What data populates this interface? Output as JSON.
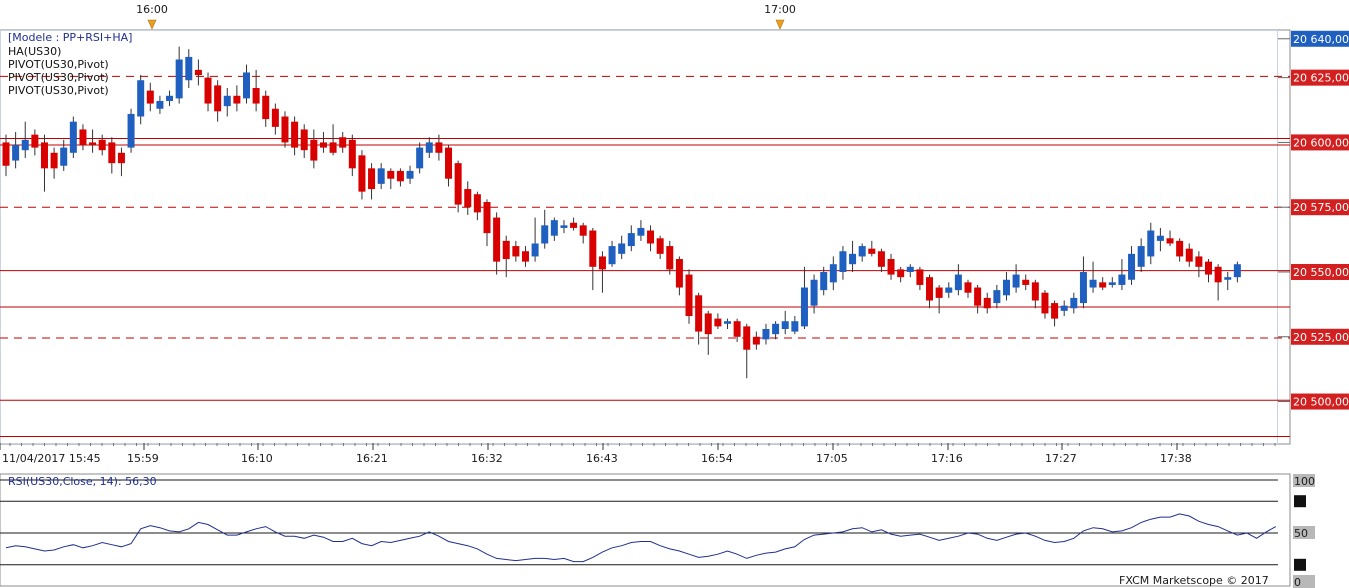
{
  "chart_data": [
    {
      "type": "candlestick",
      "legend": {
        "model": "[Modele : PP+RSI+HA]",
        "entries": [
          "HA(US30)",
          "PIVOT(US30,Pivot)",
          "PIVOT(US30,Pivot)",
          "PIVOT(US30,Pivot)"
        ]
      },
      "top_time_labels": [
        "16:00",
        "17:00"
      ],
      "x_tick_labels": [
        "11/04/2017 15:45",
        "15:59",
        "16:10",
        "16:21",
        "16:32",
        "16:43",
        "16:54",
        "17:05",
        "17:16",
        "17:27",
        "17:38"
      ],
      "y_tick_labels": [
        "20 640,00",
        "20 625,00",
        "20 600,00",
        "20 575,00",
        "20 550,00",
        "20 525,00",
        "20 500,00"
      ],
      "ylim": [
        20484,
        20643
      ],
      "colors": {
        "up": "#1f5fbf",
        "down": "#d90000",
        "wick": "#333333",
        "pivot": "#c00000",
        "label_bg": "#d22020"
      },
      "pivot_levels": [
        {
          "value": 20625.5,
          "style": "dashed"
        },
        {
          "value": 20601.5,
          "style": "solid"
        },
        {
          "value": 20599.0,
          "style": "solid"
        },
        {
          "value": 20575.0,
          "style": "dashed"
        },
        {
          "value": 20550.5,
          "style": "solid"
        },
        {
          "value": 20536.5,
          "style": "solid"
        },
        {
          "value": 20524.5,
          "style": "dashed"
        },
        {
          "value": 20500.5,
          "style": "solid"
        },
        {
          "value": 20486.5,
          "style": "solid"
        }
      ],
      "candles": [
        {
          "o": 20600,
          "c": 20591,
          "h": 20603,
          "l": 20587
        },
        {
          "o": 20593,
          "c": 20599,
          "h": 20604,
          "l": 20590
        },
        {
          "o": 20597,
          "c": 20601,
          "h": 20608,
          "l": 20594
        },
        {
          "o": 20603,
          "c": 20598,
          "h": 20605,
          "l": 20595
        },
        {
          "o": 20600,
          "c": 20590,
          "h": 20603,
          "l": 20581
        },
        {
          "o": 20596,
          "c": 20590,
          "h": 20598,
          "l": 20586
        },
        {
          "o": 20591,
          "c": 20598,
          "h": 20601,
          "l": 20589
        },
        {
          "o": 20596,
          "c": 20608,
          "h": 20610,
          "l": 20594
        },
        {
          "o": 20605,
          "c": 20599,
          "h": 20607,
          "l": 20597
        },
        {
          "o": 20600,
          "c": 20599,
          "h": 20605,
          "l": 20596
        },
        {
          "o": 20601,
          "c": 20597,
          "h": 20603,
          "l": 20595
        },
        {
          "o": 20600,
          "c": 20592,
          "h": 20602,
          "l": 20588
        },
        {
          "o": 20596,
          "c": 20592,
          "h": 20598,
          "l": 20587
        },
        {
          "o": 20598,
          "c": 20611,
          "h": 20613,
          "l": 20596
        },
        {
          "o": 20610,
          "c": 20624,
          "h": 20626,
          "l": 20607
        },
        {
          "o": 20620,
          "c": 20615,
          "h": 20623,
          "l": 20612
        },
        {
          "o": 20613,
          "c": 20616,
          "h": 20618,
          "l": 20611
        },
        {
          "o": 20616,
          "c": 20618,
          "h": 20620,
          "l": 20614
        },
        {
          "o": 20617,
          "c": 20632,
          "h": 20637,
          "l": 20615
        },
        {
          "o": 20624,
          "c": 20633,
          "h": 20636,
          "l": 20621
        },
        {
          "o": 20628,
          "c": 20626,
          "h": 20632,
          "l": 20622
        },
        {
          "o": 20625,
          "c": 20615,
          "h": 20627,
          "l": 20612
        },
        {
          "o": 20622,
          "c": 20612,
          "h": 20624,
          "l": 20608
        },
        {
          "o": 20614,
          "c": 20618,
          "h": 20621,
          "l": 20610
        },
        {
          "o": 20618,
          "c": 20615,
          "h": 20622,
          "l": 20612
        },
        {
          "o": 20617,
          "c": 20627,
          "h": 20630,
          "l": 20615
        },
        {
          "o": 20621,
          "c": 20615,
          "h": 20628,
          "l": 20612
        },
        {
          "o": 20618,
          "c": 20609,
          "h": 20620,
          "l": 20606
        },
        {
          "o": 20613,
          "c": 20606,
          "h": 20615,
          "l": 20603
        },
        {
          "o": 20610,
          "c": 20600,
          "h": 20612,
          "l": 20598
        },
        {
          "o": 20608,
          "c": 20598,
          "h": 20610,
          "l": 20595
        },
        {
          "o": 20605,
          "c": 20597,
          "h": 20607,
          "l": 20594
        },
        {
          "o": 20601,
          "c": 20593,
          "h": 20605,
          "l": 20590
        },
        {
          "o": 20600,
          "c": 20598,
          "h": 20604,
          "l": 20596
        },
        {
          "o": 20600,
          "c": 20596,
          "h": 20607,
          "l": 20595
        },
        {
          "o": 20602,
          "c": 20598,
          "h": 20604,
          "l": 20596
        },
        {
          "o": 20601,
          "c": 20590,
          "h": 20603,
          "l": 20587
        },
        {
          "o": 20595,
          "c": 20581,
          "h": 20597,
          "l": 20578
        },
        {
          "o": 20590,
          "c": 20582,
          "h": 20592,
          "l": 20578
        },
        {
          "o": 20584,
          "c": 20590,
          "h": 20592,
          "l": 20582
        },
        {
          "o": 20589,
          "c": 20586,
          "h": 20590,
          "l": 20582
        },
        {
          "o": 20589,
          "c": 20585,
          "h": 20590,
          "l": 20583
        },
        {
          "o": 20586,
          "c": 20589,
          "h": 20591,
          "l": 20584
        },
        {
          "o": 20590,
          "c": 20598,
          "h": 20600,
          "l": 20588
        },
        {
          "o": 20596,
          "c": 20600,
          "h": 20602,
          "l": 20594
        },
        {
          "o": 20600,
          "c": 20596,
          "h": 20603,
          "l": 20593
        },
        {
          "o": 20598,
          "c": 20586,
          "h": 20599,
          "l": 20583
        },
        {
          "o": 20592,
          "c": 20576,
          "h": 20593,
          "l": 20573
        },
        {
          "o": 20582,
          "c": 20575,
          "h": 20585,
          "l": 20572
        },
        {
          "o": 20580,
          "c": 20573,
          "h": 20581,
          "l": 20570
        },
        {
          "o": 20577,
          "c": 20565,
          "h": 20578,
          "l": 20560
        },
        {
          "o": 20571,
          "c": 20554,
          "h": 20573,
          "l": 20549
        },
        {
          "o": 20562,
          "c": 20555,
          "h": 20564,
          "l": 20548
        },
        {
          "o": 20560,
          "c": 20556,
          "h": 20562,
          "l": 20554
        },
        {
          "o": 20558,
          "c": 20554,
          "h": 20560,
          "l": 20552
        },
        {
          "o": 20556,
          "c": 20561,
          "h": 20571,
          "l": 20554
        },
        {
          "o": 20561,
          "c": 20568,
          "h": 20574,
          "l": 20559
        },
        {
          "o": 20564,
          "c": 20570,
          "h": 20571,
          "l": 20562
        },
        {
          "o": 20567,
          "c": 20568,
          "h": 20570,
          "l": 20565
        },
        {
          "o": 20569,
          "c": 20567,
          "h": 20571,
          "l": 20566
        },
        {
          "o": 20568,
          "c": 20564,
          "h": 20569,
          "l": 20561
        },
        {
          "o": 20566,
          "c": 20552,
          "h": 20567,
          "l": 20543
        },
        {
          "o": 20556,
          "c": 20551,
          "h": 20558,
          "l": 20542
        },
        {
          "o": 20553,
          "c": 20560,
          "h": 20562,
          "l": 20552
        },
        {
          "o": 20557,
          "c": 20561,
          "h": 20564,
          "l": 20555
        },
        {
          "o": 20560,
          "c": 20565,
          "h": 20568,
          "l": 20558
        },
        {
          "o": 20564,
          "c": 20567,
          "h": 20570,
          "l": 20562
        },
        {
          "o": 20566,
          "c": 20561,
          "h": 20568,
          "l": 20558
        },
        {
          "o": 20563,
          "c": 20557,
          "h": 20564,
          "l": 20555
        },
        {
          "o": 20560,
          "c": 20551,
          "h": 20562,
          "l": 20549
        },
        {
          "o": 20555,
          "c": 20544,
          "h": 20556,
          "l": 20541
        },
        {
          "o": 20549,
          "c": 20533,
          "h": 20551,
          "l": 20530
        },
        {
          "o": 20541,
          "c": 20527,
          "h": 20542,
          "l": 20522
        },
        {
          "o": 20534,
          "c": 20526,
          "h": 20535,
          "l": 20518
        },
        {
          "o": 20532,
          "c": 20529,
          "h": 20534,
          "l": 20528
        },
        {
          "o": 20530,
          "c": 20531,
          "h": 20532,
          "l": 20528
        },
        {
          "o": 20531,
          "c": 20525,
          "h": 20532,
          "l": 20523
        },
        {
          "o": 20529,
          "c": 20520,
          "h": 20530,
          "l": 20509
        },
        {
          "o": 20525,
          "c": 20522,
          "h": 20527,
          "l": 20520
        },
        {
          "o": 20524,
          "c": 20528,
          "h": 20530,
          "l": 20522
        },
        {
          "o": 20526,
          "c": 20530,
          "h": 20531,
          "l": 20524
        },
        {
          "o": 20528,
          "c": 20531,
          "h": 20535,
          "l": 20526
        },
        {
          "o": 20527,
          "c": 20531,
          "h": 20533,
          "l": 20526
        },
        {
          "o": 20529,
          "c": 20544,
          "h": 20552,
          "l": 20528
        },
        {
          "o": 20537,
          "c": 20547,
          "h": 20549,
          "l": 20534
        },
        {
          "o": 20543,
          "c": 20550,
          "h": 20552,
          "l": 20541
        },
        {
          "o": 20546,
          "c": 20553,
          "h": 20556,
          "l": 20543
        },
        {
          "o": 20550,
          "c": 20558,
          "h": 20560,
          "l": 20547
        },
        {
          "o": 20553,
          "c": 20557,
          "h": 20562,
          "l": 20550
        },
        {
          "o": 20556,
          "c": 20560,
          "h": 20561,
          "l": 20554
        },
        {
          "o": 20559,
          "c": 20557,
          "h": 20562,
          "l": 20556
        },
        {
          "o": 20558,
          "c": 20552,
          "h": 20559,
          "l": 20550
        },
        {
          "o": 20555,
          "c": 20549,
          "h": 20557,
          "l": 20547
        },
        {
          "o": 20551,
          "c": 20548,
          "h": 20552,
          "l": 20546
        },
        {
          "o": 20550,
          "c": 20552,
          "h": 20553,
          "l": 20548
        },
        {
          "o": 20551,
          "c": 20545,
          "h": 20552,
          "l": 20543
        },
        {
          "o": 20548,
          "c": 20539,
          "h": 20549,
          "l": 20536
        },
        {
          "o": 20544,
          "c": 20540,
          "h": 20545,
          "l": 20534
        },
        {
          "o": 20542,
          "c": 20544,
          "h": 20546,
          "l": 20540
        },
        {
          "o": 20543,
          "c": 20549,
          "h": 20553,
          "l": 20541
        },
        {
          "o": 20546,
          "c": 20542,
          "h": 20547,
          "l": 20540
        },
        {
          "o": 20544,
          "c": 20537,
          "h": 20545,
          "l": 20534
        },
        {
          "o": 20540,
          "c": 20536,
          "h": 20542,
          "l": 20534
        },
        {
          "o": 20538,
          "c": 20543,
          "h": 20545,
          "l": 20536
        },
        {
          "o": 20541,
          "c": 20547,
          "h": 20550,
          "l": 20539
        },
        {
          "o": 20544,
          "c": 20549,
          "h": 20553,
          "l": 20542
        },
        {
          "o": 20547,
          "c": 20545,
          "h": 20549,
          "l": 20543
        },
        {
          "o": 20546,
          "c": 20539,
          "h": 20547,
          "l": 20536
        },
        {
          "o": 20542,
          "c": 20534,
          "h": 20543,
          "l": 20532
        },
        {
          "o": 20538,
          "c": 20532,
          "h": 20539,
          "l": 20529
        },
        {
          "o": 20535,
          "c": 20537,
          "h": 20539,
          "l": 20533
        },
        {
          "o": 20536,
          "c": 20540,
          "h": 20542,
          "l": 20534
        },
        {
          "o": 20538,
          "c": 20550,
          "h": 20556,
          "l": 20536
        },
        {
          "o": 20544,
          "c": 20547,
          "h": 20554,
          "l": 20542
        },
        {
          "o": 20546,
          "c": 20544,
          "h": 20548,
          "l": 20543
        },
        {
          "o": 20545,
          "c": 20546,
          "h": 20548,
          "l": 20544
        },
        {
          "o": 20545,
          "c": 20549,
          "h": 20555,
          "l": 20543
        },
        {
          "o": 20547,
          "c": 20557,
          "h": 20560,
          "l": 20545
        },
        {
          "o": 20552,
          "c": 20560,
          "h": 20563,
          "l": 20550
        },
        {
          "o": 20556,
          "c": 20566,
          "h": 20569,
          "l": 20553
        },
        {
          "o": 20562,
          "c": 20564,
          "h": 20567,
          "l": 20558
        },
        {
          "o": 20563,
          "c": 20561,
          "h": 20566,
          "l": 20560
        },
        {
          "o": 20562,
          "c": 20556,
          "h": 20563,
          "l": 20554
        },
        {
          "o": 20559,
          "c": 20554,
          "h": 20561,
          "l": 20552
        },
        {
          "o": 20556,
          "c": 20552,
          "h": 20558,
          "l": 20548
        },
        {
          "o": 20554,
          "c": 20549,
          "h": 20555,
          "l": 20546
        },
        {
          "o": 20552,
          "c": 20546,
          "h": 20553,
          "l": 20539
        },
        {
          "o": 20547,
          "c": 20548,
          "h": 20550,
          "l": 20543
        },
        {
          "o": 20548,
          "c": 20553,
          "h": 20554,
          "l": 20546
        }
      ]
    },
    {
      "type": "line",
      "legend": "RSI(US30,Close, 14): 56,30",
      "ylim": [
        0,
        100
      ],
      "levels": [
        100,
        80,
        50,
        20
      ],
      "y_tick_labels": [
        "100",
        "50",
        "0"
      ],
      "series": [
        {
          "color": "#1f2f8f",
          "values": [
            36,
            38,
            37,
            35,
            33,
            34,
            37,
            39,
            36,
            38,
            41,
            39,
            37,
            40,
            54,
            57,
            55,
            52,
            51,
            54,
            60,
            58,
            53,
            48,
            48,
            51,
            54,
            56,
            51,
            47,
            47,
            45,
            48,
            46,
            42,
            42,
            45,
            40,
            38,
            42,
            41,
            43,
            45,
            47,
            51,
            47,
            42,
            40,
            38,
            35,
            30,
            26,
            25,
            24,
            25,
            26,
            26,
            25,
            26,
            23,
            23,
            27,
            32,
            36,
            38,
            41,
            42,
            42,
            38,
            35,
            33,
            30,
            27,
            28,
            30,
            33,
            30,
            26,
            29,
            31,
            32,
            35,
            37,
            44,
            48,
            49,
            50,
            51,
            54,
            55,
            51,
            53,
            49,
            47,
            48,
            49,
            46,
            43,
            45,
            47,
            50,
            49,
            45,
            43,
            46,
            49,
            50,
            47,
            43,
            41,
            42,
            45,
            52,
            55,
            54,
            51,
            52,
            55,
            60,
            63,
            65,
            65,
            68,
            66,
            61,
            58,
            56,
            52,
            48,
            50,
            45,
            51,
            56
          ]
        }
      ],
      "credit": "FXCM Marketscope © 2017"
    }
  ]
}
